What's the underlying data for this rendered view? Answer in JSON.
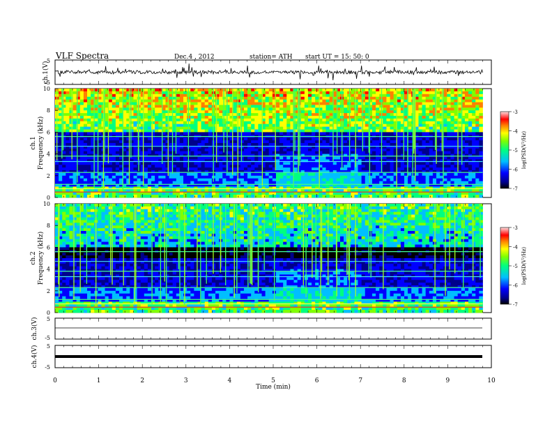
{
  "header": {
    "title": "VLF  Spectra",
    "date": "Dec.4  , 2012",
    "station": "station= ATH",
    "start": "start  UT  =    15: 50: 0"
  },
  "chart_data": [
    {
      "type": "line",
      "panel": "ch1-waveform",
      "ylabel": "ch.1(V)",
      "ylim": [
        -5,
        5
      ],
      "yticks": [
        "5",
        "-5"
      ],
      "xlim": [
        0,
        10
      ],
      "description_values": "continuous noisy waveform near 0 V with occasional spikes"
    },
    {
      "type": "heatmap",
      "panel": "ch1-spectrogram",
      "ylabel_top": "ch.1",
      "ylabel": "Frequency  (kHz)",
      "ylim": [
        0,
        10
      ],
      "yticks": [
        "0",
        "2",
        "4",
        "6",
        "8",
        "10"
      ],
      "xlim": [
        0,
        9.8
      ],
      "colorbar": {
        "label": "log(PSD(V²/Hz)",
        "range": [
          -7,
          -3
        ],
        "ticks": [
          "-3",
          "-4",
          "-5",
          "-6",
          "-7"
        ]
      }
    },
    {
      "type": "heatmap",
      "panel": "ch2-spectrogram",
      "ylabel_top": "ch.2",
      "ylabel": "Frequency  (kHz)",
      "ylim": [
        0,
        10
      ],
      "yticks": [
        "0",
        "2",
        "4",
        "6",
        "8",
        "10"
      ],
      "xlim": [
        0,
        9.8
      ],
      "colorbar": {
        "label": "log(PSD(V²/Hz)",
        "range": [
          -7,
          -3
        ],
        "ticks": [
          "-3",
          "-4",
          "-5",
          "-6",
          "-7"
        ]
      }
    },
    {
      "type": "line",
      "panel": "ch3-waveform",
      "ylabel": "ch.3(V)",
      "ylim": [
        -5,
        5
      ],
      "yticks": [
        "5",
        "-5"
      ],
      "xlim": [
        0,
        10
      ]
    },
    {
      "type": "line",
      "panel": "ch4-waveform",
      "ylabel": "ch.4(V)",
      "ylim": [
        -5,
        5
      ],
      "yticks": [
        "5",
        "-5"
      ],
      "xlim": [
        0,
        10
      ]
    }
  ],
  "xaxis": {
    "label": "Time  (min)",
    "ticks": [
      "0",
      "1",
      "2",
      "3",
      "4",
      "5",
      "6",
      "7",
      "8",
      "9",
      "10"
    ]
  }
}
